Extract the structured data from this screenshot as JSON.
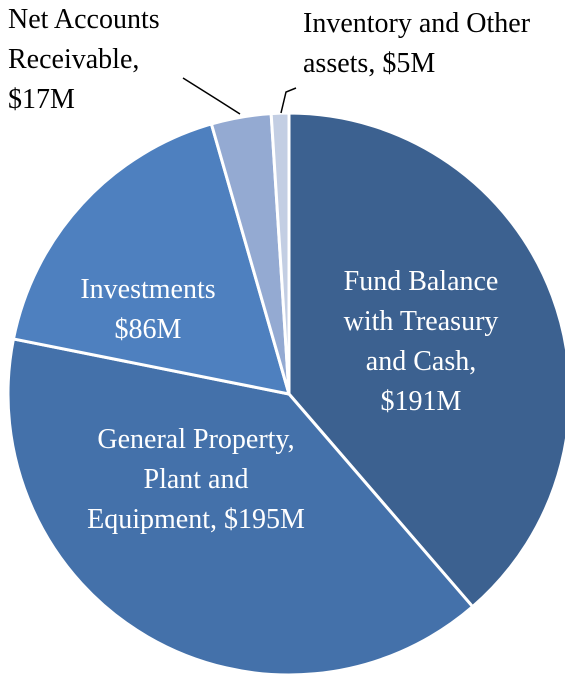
{
  "chart_data": {
    "type": "pie",
    "categories": [
      "Fund Balance with Treasury and Cash,",
      "General Property, Plant and Equipment,",
      "Investments",
      "Net Accounts Receivable,",
      "Inventory and Other assets,"
    ],
    "values": [
      191,
      195,
      86,
      17,
      5
    ],
    "value_labels": [
      "$191M",
      "$195M",
      "$86M",
      "$17M",
      "$5M"
    ],
    "colors": [
      "#3c6190",
      "#4471aa",
      "#4e80bf",
      "#94aad2",
      "#c3cee3"
    ]
  }
}
